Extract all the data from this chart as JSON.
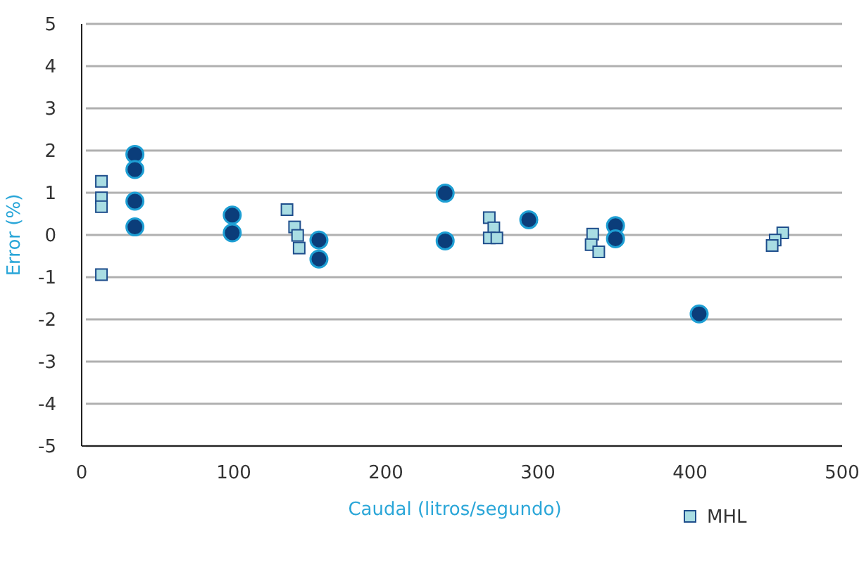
{
  "chart_data": {
    "type": "scatter",
    "xlabel": "Caudal (litros/segundo)",
    "ylabel": "Error (%)",
    "xlim": [
      0,
      500
    ],
    "xticks": [
      0,
      100,
      200,
      300,
      400,
      500
    ],
    "ylim": [
      -5,
      5
    ],
    "yticks": [
      -5,
      -4,
      -3,
      -2,
      -1,
      0,
      1,
      2,
      3,
      4,
      5
    ],
    "grid": "y",
    "legend": "bottom right",
    "series": [
      {
        "color": "#0b3d7a",
        "marker": "circle",
        "x": [
          35,
          35,
          35,
          35,
          99,
          99,
          156,
          156,
          239,
          239,
          294,
          351,
          351,
          406
        ],
        "values": [
          1.91,
          1.55,
          0.8,
          0.19,
          0.47,
          0.05,
          -0.12,
          -0.57,
          0.99,
          -0.14,
          0.36,
          0.22,
          -0.09,
          -1.87
        ]
      },
      {
        "name": "MHL",
        "color": "#a9dde3",
        "marker": "square",
        "x": [
          13,
          13,
          13,
          13,
          135,
          140,
          142,
          143,
          268,
          271,
          268,
          273,
          336,
          335,
          340,
          461,
          456,
          454
        ],
        "values": [
          1.27,
          0.88,
          0.67,
          -0.94,
          0.6,
          0.19,
          -0.01,
          -0.31,
          0.41,
          0.17,
          -0.07,
          -0.07,
          0.02,
          -0.23,
          -0.4,
          0.05,
          -0.12,
          -0.25
        ]
      }
    ]
  }
}
